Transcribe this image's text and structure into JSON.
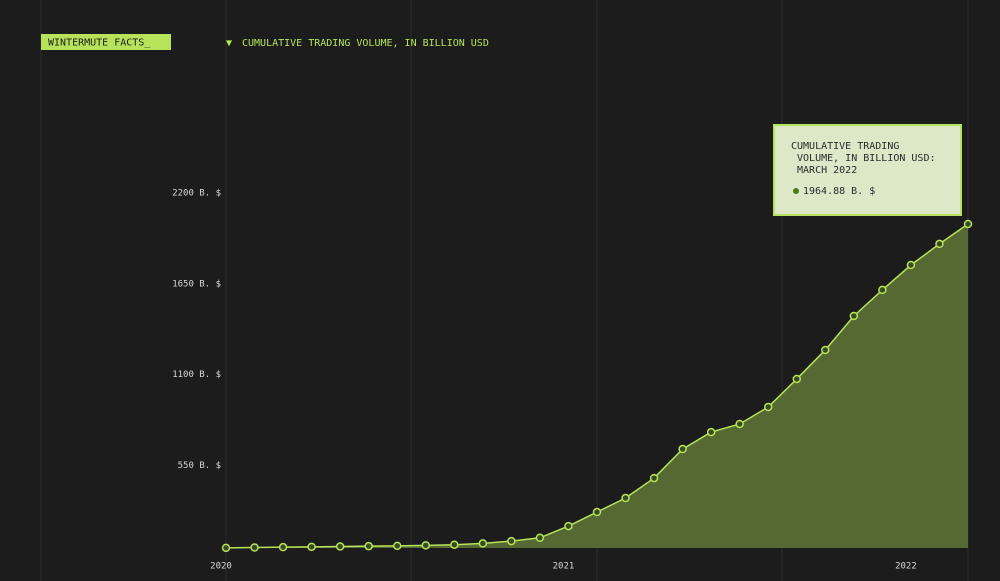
{
  "chart_data": {
    "type": "area",
    "badge": "WINTERMUTE FACTS_",
    "categories": [
      "2020",
      null,
      null,
      null,
      null,
      null,
      null,
      null,
      null,
      null,
      null,
      null,
      "2021",
      null,
      null,
      null,
      null,
      null,
      null,
      null,
      null,
      null,
      null,
      null,
      "2022",
      null,
      null
    ],
    "series": [
      {
        "name": "CUMULATIVE TRADING VOLUME, IN BILLION USD",
        "color": "#b6e35a",
        "fill": "#5a6e35",
        "values": [
          1,
          3,
          5,
          7,
          9,
          11,
          13,
          16,
          20,
          28,
          42,
          62,
          133,
          218,
          303,
          424,
          600,
          703,
          752,
          855,
          1025,
          1201,
          1407,
          1565,
          1716,
          1844,
          1964.88
        ]
      }
    ],
    "ylim": [
      0,
      2750
    ],
    "yticks": [
      {
        "value": 550,
        "label": "550 B. $"
      },
      {
        "value": 1100,
        "label": "1100 B. $"
      },
      {
        "value": 1650,
        "label": "1650 B. $"
      },
      {
        "value": 2200,
        "label": "2200 B. $"
      }
    ],
    "tooltip": {
      "title": "CUMULATIVE TRADING VOLUME, IN BILLION USD: MARCH 2022",
      "value_label": "1964.88 B. $"
    }
  }
}
